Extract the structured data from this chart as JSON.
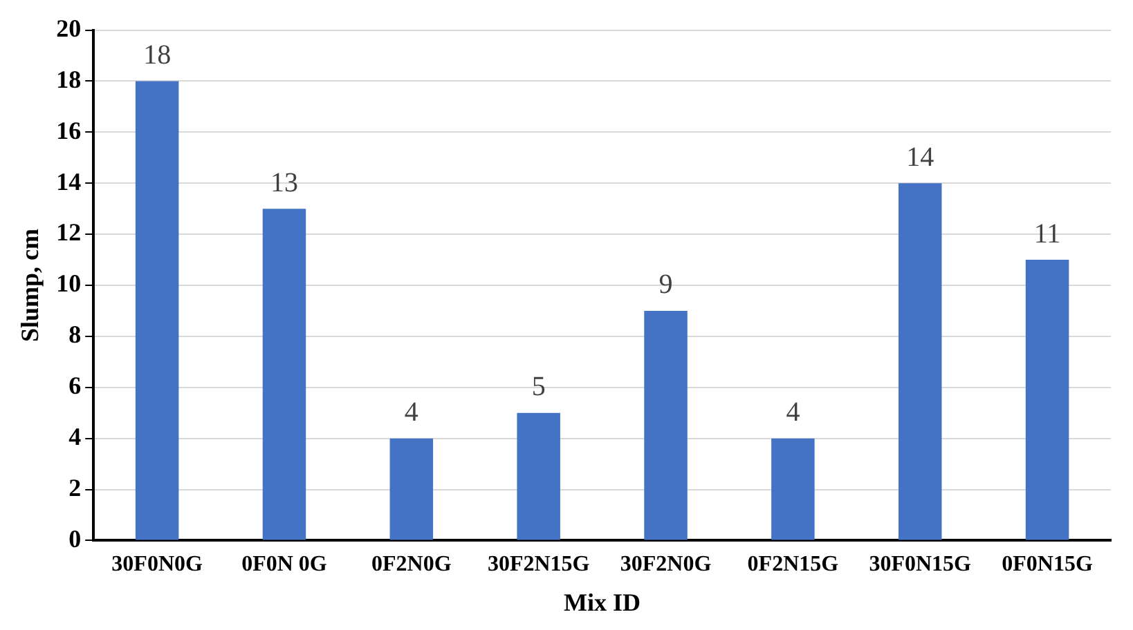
{
  "chart_data": {
    "type": "bar",
    "xlabel": "Mix ID",
    "ylabel": "Slump, cm",
    "categories": [
      "30F0N0G",
      "0F0N 0G",
      "0F2N0G",
      "30F2N15G",
      "30F2N0G",
      "0F2N15G",
      "30F0N15G",
      "0F0N15G"
    ],
    "values": [
      18,
      13,
      4,
      5,
      9,
      4,
      14,
      11
    ],
    "color": "#4472c4",
    "ylim": [
      0,
      20
    ],
    "yticks": [
      0,
      2,
      4,
      6,
      8,
      10,
      12,
      14,
      16,
      18,
      20
    ],
    "grid": "y",
    "data_labels": true
  }
}
